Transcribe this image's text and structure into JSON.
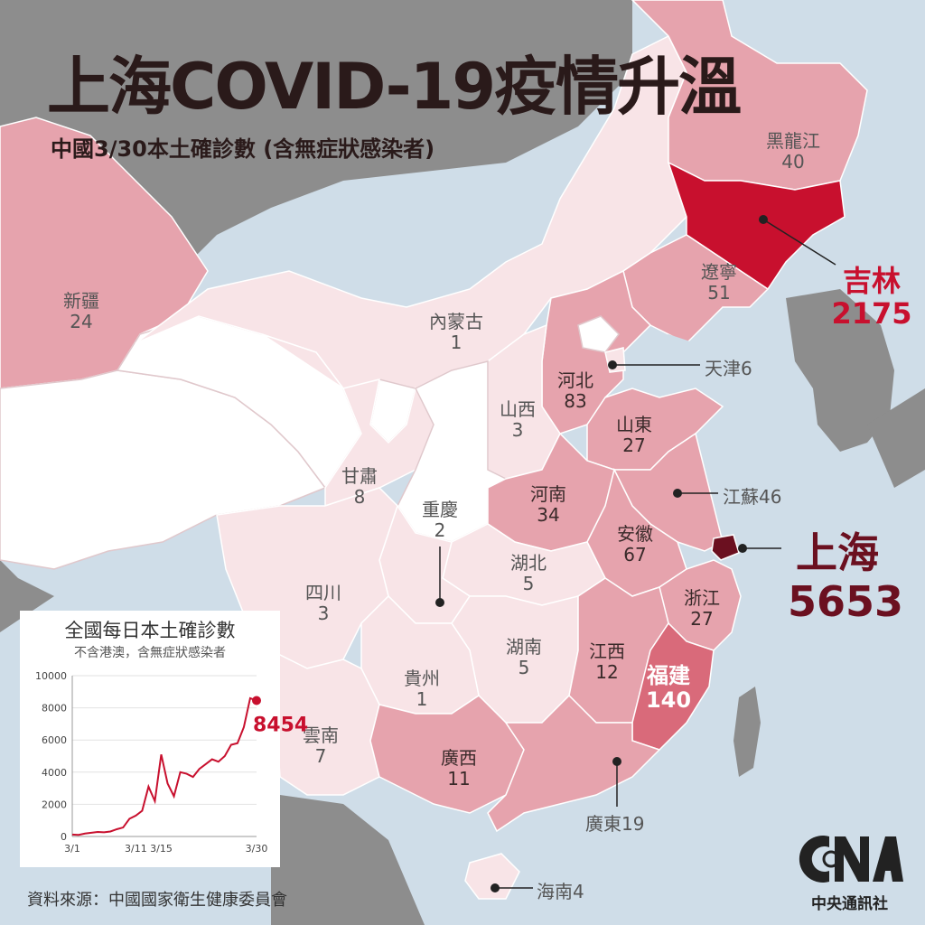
{
  "title": "上海COVID-19疫情升溫",
  "subtitle": "中國3/30本土確診數 (含無症狀感染者)",
  "provinces": {
    "heilongjiang": {
      "name": "黑龍江",
      "value": "40"
    },
    "xinjiang": {
      "name": "新疆",
      "value": "24"
    },
    "neimenggu": {
      "name": "內蒙古",
      "value": "1"
    },
    "liaoning": {
      "name": "遼寧",
      "value": "51"
    },
    "hebei": {
      "name": "河北",
      "value": "83"
    },
    "shanxi": {
      "name": "山西",
      "value": "3"
    },
    "shandong": {
      "name": "山東",
      "value": "27"
    },
    "gansu": {
      "name": "甘肅",
      "value": "8"
    },
    "henan": {
      "name": "河南",
      "value": "34"
    },
    "chongqing": {
      "name": "重慶",
      "value": "2"
    },
    "anhui": {
      "name": "安徽",
      "value": "67"
    },
    "hubei": {
      "name": "湖北",
      "value": "5"
    },
    "sichuan": {
      "name": "四川",
      "value": "3"
    },
    "zhejiang": {
      "name": "浙江",
      "value": "27"
    },
    "hunan": {
      "name": "湖南",
      "value": "5"
    },
    "jiangxi": {
      "name": "江西",
      "value": "12"
    },
    "fujian": {
      "name": "福建",
      "value": "140"
    },
    "guizhou": {
      "name": "貴州",
      "value": "1"
    },
    "yunnan": {
      "name": "雲南",
      "value": "7"
    },
    "guangxi": {
      "name": "廣西",
      "value": "11"
    }
  },
  "callouts": {
    "jilin": {
      "name": "吉林",
      "value": "2175"
    },
    "shanghai": {
      "name": "上海",
      "value": "5653"
    },
    "tianjin": "天津6",
    "jiangsu": "江蘇46",
    "guangdong": "廣東19",
    "hainan": "海南4"
  },
  "colors": {
    "sea": "#cfdde8",
    "foreign_land": "#8d8d8d",
    "level0": "#ffffff",
    "level1": "#f8e4e7",
    "level2": "#f0c4cb",
    "level3": "#e6a3ad",
    "level4": "#d96a7a",
    "jilin": "#c8102e",
    "shanghai": "#6b1020"
  },
  "chart": {
    "title": "全國每日本土確診數",
    "subtitle": "不含港澳，含無症狀感染者",
    "latest_label": "8454"
  },
  "chart_data": {
    "type": "line",
    "title": "全國每日本土確診數",
    "x_tick_labels": [
      "3/1",
      "3/11",
      "3/15",
      "3/30"
    ],
    "y_ticks": [
      0,
      2000,
      4000,
      6000,
      8000,
      10000
    ],
    "ylim": [
      0,
      10000
    ],
    "xlim": [
      1,
      30
    ],
    "series": [
      {
        "x": [
          1,
          2,
          3,
          4,
          5,
          6,
          7,
          8,
          9,
          10,
          11,
          12,
          13,
          14,
          15,
          16,
          17,
          18,
          19,
          20,
          21,
          22,
          23,
          24,
          25,
          26,
          27,
          28,
          29,
          30
        ],
        "y": [
          120,
          100,
          180,
          230,
          280,
          260,
          310,
          450,
          560,
          1100,
          1300,
          1600,
          3100,
          2200,
          5100,
          3300,
          2500,
          4000,
          3900,
          3700,
          4200,
          4500,
          4800,
          4650,
          5000,
          5700,
          5800,
          6800,
          8600,
          8454
        ]
      }
    ],
    "latest_value": 8454
  },
  "source": "資料來源：中國國家衛生健康委員會",
  "publisher": "中央通訊社"
}
